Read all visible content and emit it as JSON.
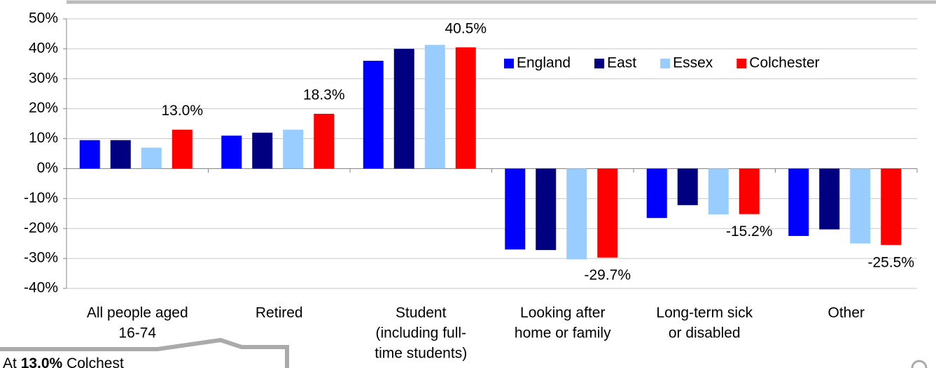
{
  "chart_data": {
    "type": "bar",
    "categories": [
      [
        "All people aged",
        "16-74"
      ],
      [
        "Retired"
      ],
      [
        "Student",
        "(including full-",
        "time students)"
      ],
      [
        "Looking after",
        "home or family"
      ],
      [
        "Long-term sick",
        "or disabled"
      ],
      [
        "Other"
      ]
    ],
    "series": [
      {
        "name": "England",
        "color": "#0000ff",
        "values": [
          9.5,
          11,
          36,
          -27,
          -16.5,
          -22.5
        ]
      },
      {
        "name": "East",
        "color": "#000080",
        "values": [
          9.5,
          12,
          40,
          -27.2,
          -12.2,
          -20.3
        ]
      },
      {
        "name": "Essex",
        "color": "#99ccff",
        "values": [
          7,
          13,
          41.3,
          -30.3,
          -15.3,
          -25
        ]
      },
      {
        "name": "Colchester",
        "color": "#ff0000",
        "values": [
          13.0,
          18.3,
          40.5,
          -29.7,
          -15.2,
          -25.5
        ],
        "value_labels": [
          "13.0%",
          "18.3%",
          "40.5%",
          "-29.7%",
          "-15.2%",
          "-25.5%"
        ]
      }
    ],
    "ylim": [
      -40,
      50
    ],
    "yticks": [
      {
        "value": -40,
        "label": "-40%"
      },
      {
        "value": -30,
        "label": "-30%"
      },
      {
        "value": -20,
        "label": "-20%"
      },
      {
        "value": -10,
        "label": "-10%"
      },
      {
        "value": 0,
        "label": "0%"
      },
      {
        "value": 10,
        "label": "10%"
      },
      {
        "value": 20,
        "label": "20%"
      },
      {
        "value": 30,
        "label": "30%"
      },
      {
        "value": 40,
        "label": "40%"
      },
      {
        "value": 50,
        "label": "50%"
      }
    ],
    "grid": true,
    "legend": "upper right",
    "annotation": {
      "prefix": "At ",
      "bold": "13.0%",
      "suffix": " Colchest"
    }
  }
}
